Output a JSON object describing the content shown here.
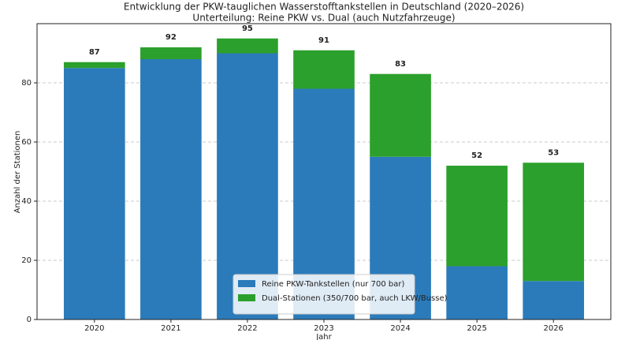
{
  "chart_data": {
    "type": "stacked_bar",
    "title": "Entwicklung der PKW-tauglichen Wasserstofftankstellen in Deutschland (2020–2026)",
    "subtitle": "Unterteilung: Reine PKW vs. Dual (auch Nutzfahrzeuge)",
    "xlabel": "Jahr",
    "ylabel": "Anzahl der Stationen",
    "categories": [
      "2020",
      "2021",
      "2022",
      "2023",
      "2024",
      "2025",
      "2026"
    ],
    "series": [
      {
        "name": "Reine PKW-Tankstellen (nur 700 bar)",
        "color": "#2b7bba",
        "values": [
          85,
          88,
          90,
          78,
          55,
          18,
          13
        ]
      },
      {
        "name": "Dual-Stationen (350/700 bar, auch LKW/Busse)",
        "color": "#2ca02c",
        "values": [
          2,
          4,
          5,
          13,
          28,
          34,
          40
        ]
      }
    ],
    "totals": [
      87,
      92,
      95,
      91,
      83,
      52,
      53
    ],
    "ylim": [
      0,
      100
    ],
    "yticks": [
      0,
      20,
      40,
      60,
      80
    ],
    "grid": true,
    "legend": "lower center"
  }
}
